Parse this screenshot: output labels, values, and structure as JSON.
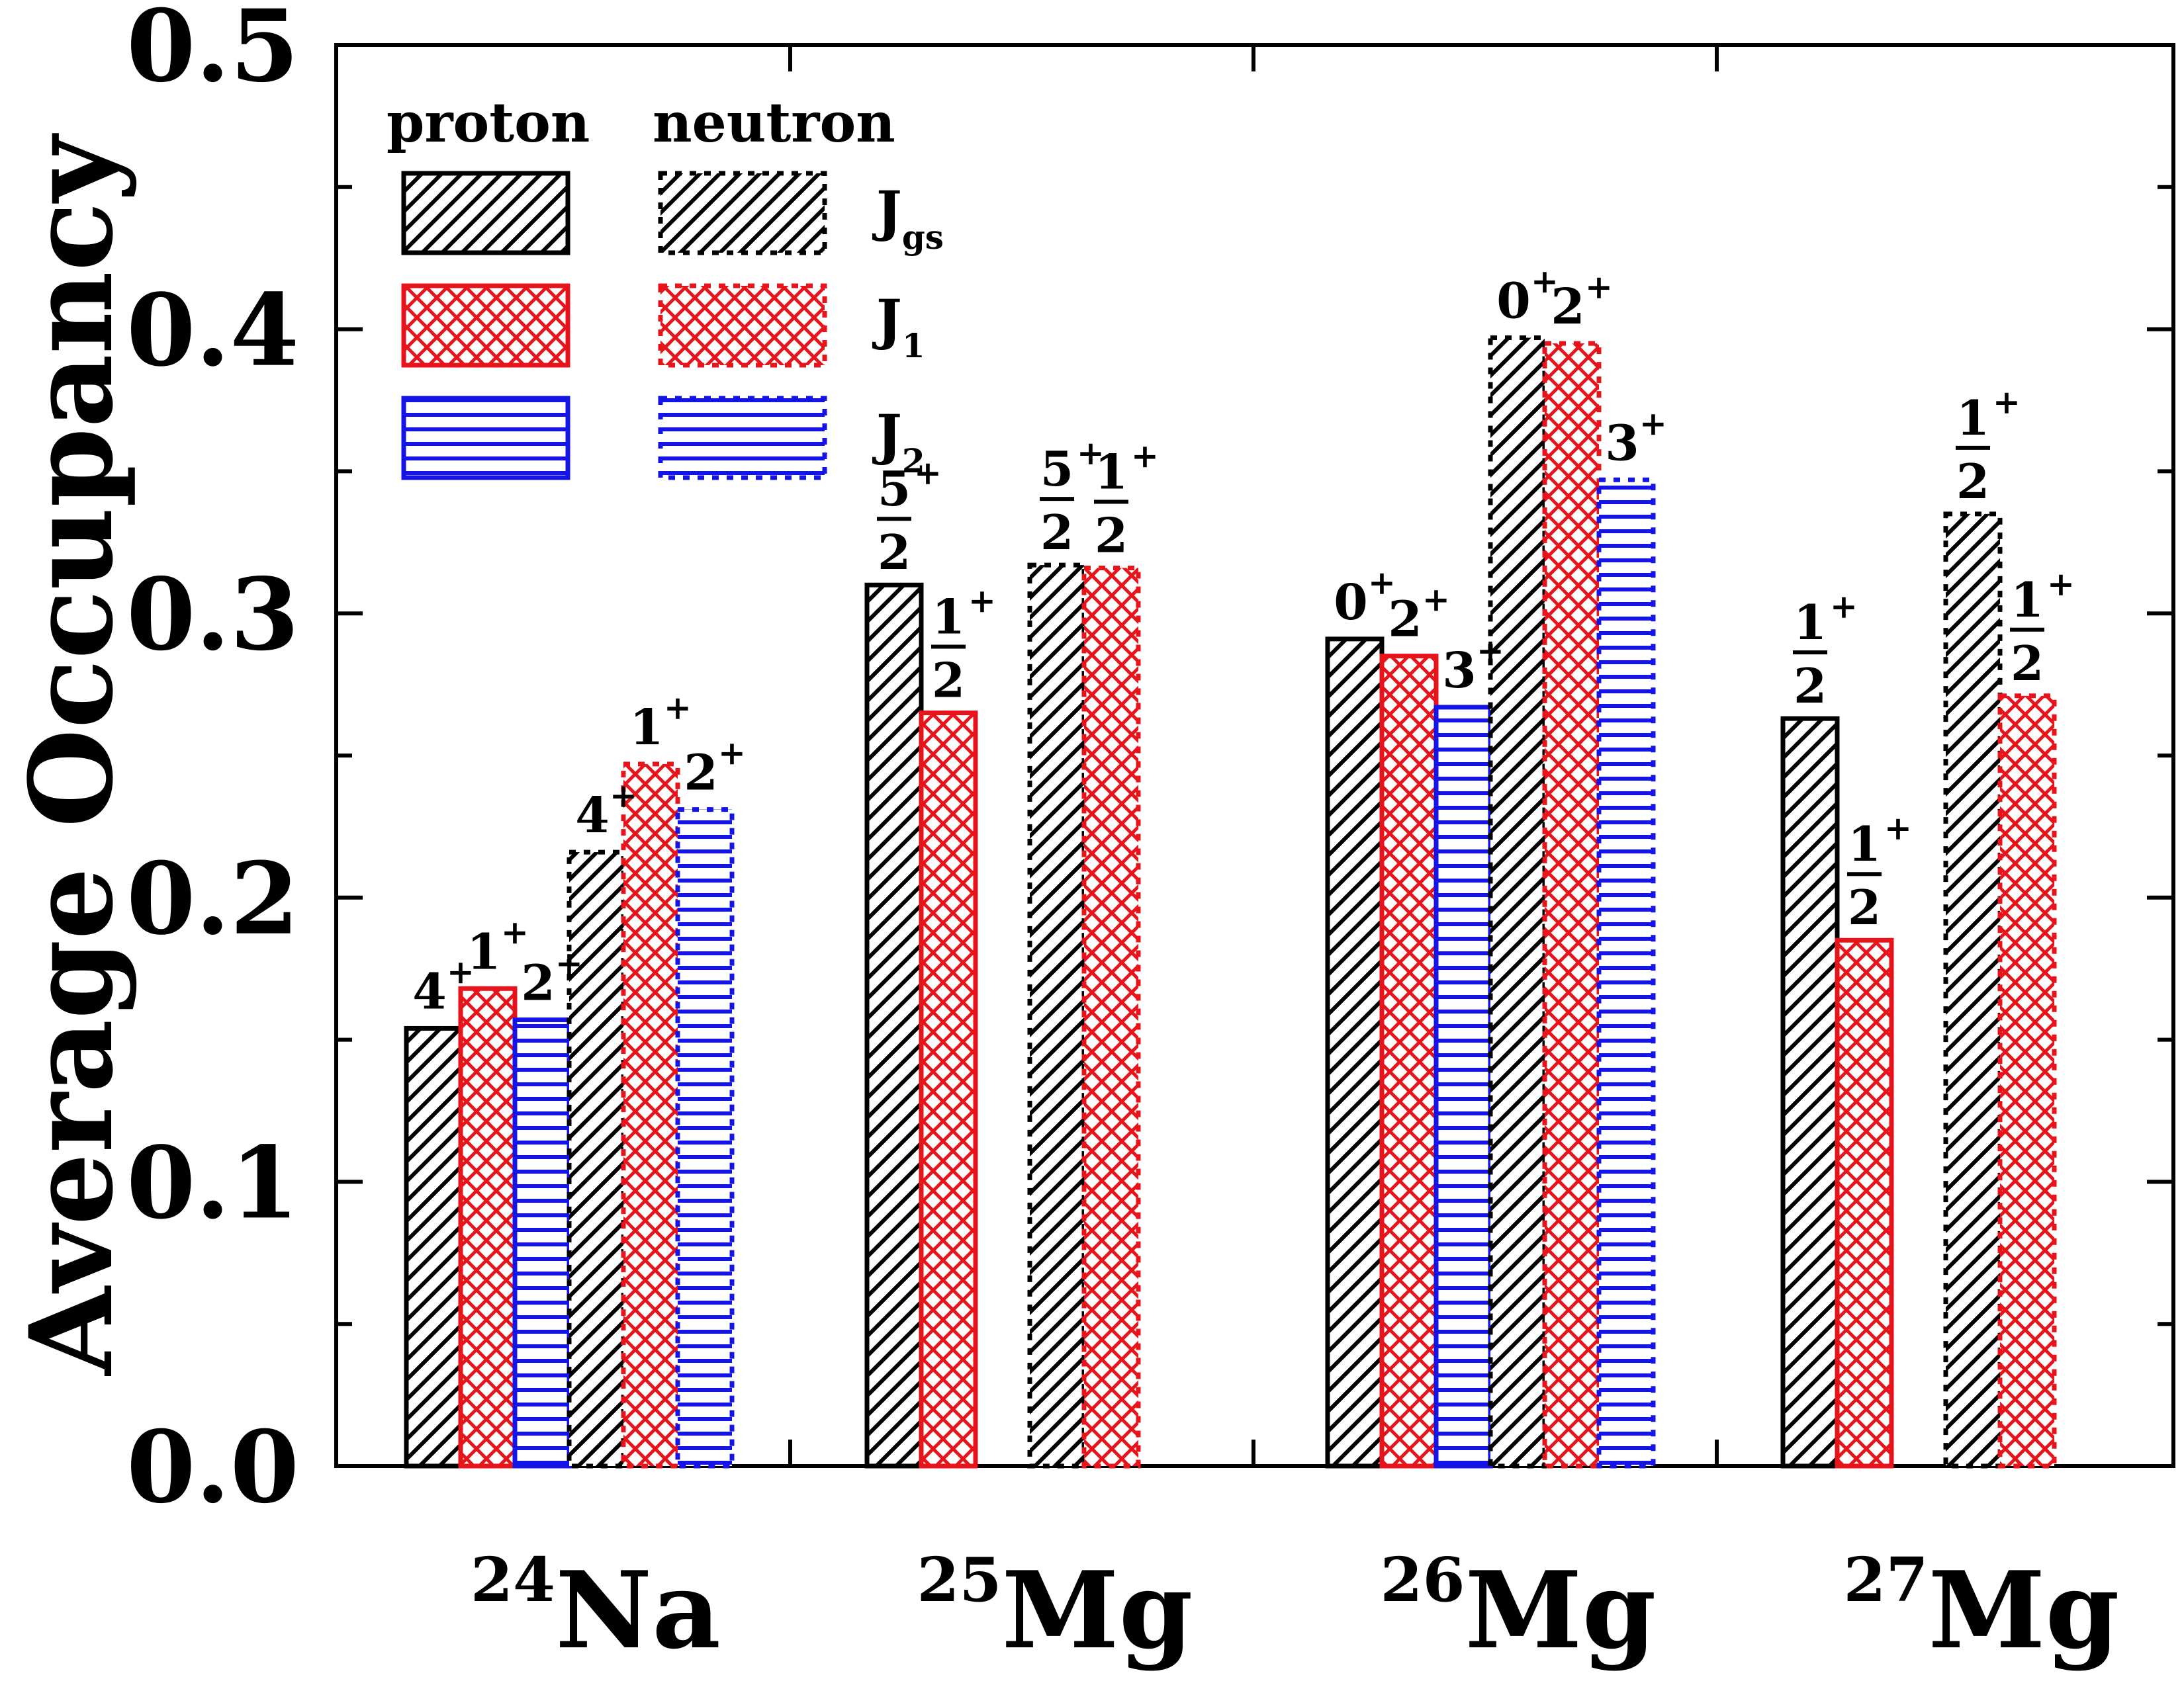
{
  "chart_data": {
    "type": "bar",
    "title": "",
    "ylabel": "Average Occupancy",
    "xlabel": "",
    "ylim": [
      0.0,
      0.5
    ],
    "yticks": [
      "0.0",
      "0.1",
      "0.2",
      "0.3",
      "0.4",
      "0.5"
    ],
    "nuclei": [
      {
        "mass": "24",
        "symbol": "Na"
      },
      {
        "mass": "25",
        "symbol": "Mg"
      },
      {
        "mass": "26",
        "symbol": "Mg"
      },
      {
        "mass": "27",
        "symbol": "Mg"
      }
    ],
    "legend": {
      "proton_header": "proton",
      "neutron_header": "neutron",
      "states": [
        {
          "main": "J",
          "sub": "gs"
        },
        {
          "main": "J",
          "sub": "1"
        },
        {
          "main": "J",
          "sub": "2"
        }
      ]
    },
    "series": [
      {
        "name": "proton J_gs",
        "nucleon": "proton",
        "state": "gs",
        "values": [
          0.154,
          0.31,
          0.291,
          0.263
        ],
        "labels": [
          {
            "num": "4",
            "sup": "+"
          },
          {
            "num": "5",
            "den": "2",
            "sup": "+"
          },
          {
            "num": "0",
            "sup": "+"
          },
          {
            "num": "1",
            "den": "2",
            "sup": "+"
          }
        ]
      },
      {
        "name": "proton J_1",
        "nucleon": "proton",
        "state": "1",
        "values": [
          0.168,
          0.265,
          0.285,
          0.185
        ],
        "labels": [
          {
            "num": "1",
            "sup": "+"
          },
          {
            "num": "1",
            "den": "2",
            "sup": "+"
          },
          {
            "num": "2",
            "sup": "+"
          },
          {
            "num": "1",
            "den": "2",
            "sup": "+"
          }
        ]
      },
      {
        "name": "proton J_2",
        "nucleon": "proton",
        "state": "2",
        "values": [
          0.157,
          null,
          0.267,
          null
        ],
        "labels": [
          {
            "num": "2",
            "sup": "+"
          },
          null,
          {
            "num": "3",
            "sup": "+"
          },
          null
        ]
      },
      {
        "name": "neutron J_gs",
        "nucleon": "neutron",
        "state": "gs",
        "values": [
          0.216,
          0.317,
          0.397,
          0.335
        ],
        "labels": [
          {
            "num": "4",
            "sup": "+"
          },
          {
            "num": "5",
            "den": "2",
            "sup": "+"
          },
          {
            "num": "0",
            "sup": "+"
          },
          {
            "num": "1",
            "den": "2",
            "sup": "+"
          }
        ]
      },
      {
        "name": "neutron J_1",
        "nucleon": "neutron",
        "state": "1",
        "values": [
          0.247,
          0.316,
          0.395,
          0.271
        ],
        "labels": [
          {
            "num": "1",
            "sup": "+"
          },
          {
            "num": "1",
            "den": "2",
            "sup": "+"
          },
          {
            "num": "2",
            "sup": "+"
          },
          {
            "num": "1",
            "den": "2",
            "sup": "+"
          }
        ]
      },
      {
        "name": "neutron J_2",
        "nucleon": "neutron",
        "state": "2",
        "values": [
          0.231,
          null,
          0.347,
          null
        ],
        "labels": [
          {
            "num": "2",
            "sup": "+"
          },
          null,
          {
            "num": "3",
            "sup": "+"
          },
          null
        ]
      }
    ],
    "colors": {
      "gs": "#000000",
      "1": "#e8141c",
      "2": "#1414e6"
    }
  }
}
